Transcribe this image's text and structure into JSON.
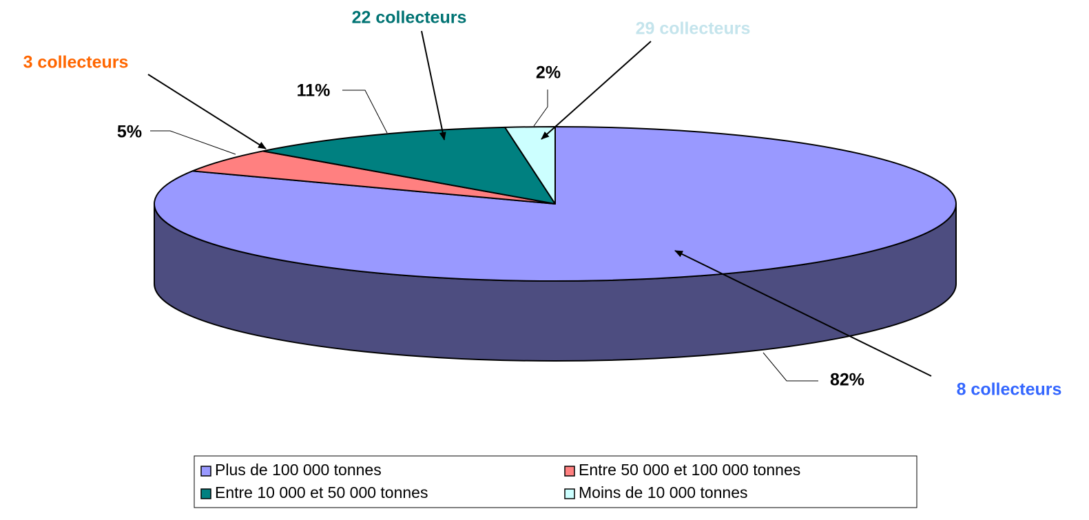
{
  "chart_data": {
    "type": "pie3d",
    "categories": [
      "Plus de 100 000 tonnes",
      "Entre 50 000 et 100 000 tonnes",
      "Entre 10 000 et 50 000 tonnes",
      "Moins de 10 000 tonnes"
    ],
    "values": [
      82,
      5,
      11,
      2
    ],
    "value_labels": [
      "82%",
      "5%",
      "11%",
      "2%"
    ],
    "colors": [
      "#9999ff",
      "#ff8080",
      "#008080",
      "#ccffff"
    ],
    "side_color": "#4d4d80",
    "annotations": [
      {
        "text": "8 collecteurs",
        "color": "#3366ff"
      },
      {
        "text": "3 collecteurs",
        "color": "#ff6600"
      },
      {
        "text": "22 collecteurs",
        "color": "#007373"
      },
      {
        "text": "29 collecteurs",
        "color": "#c4e4ec"
      }
    ],
    "legend": true
  }
}
